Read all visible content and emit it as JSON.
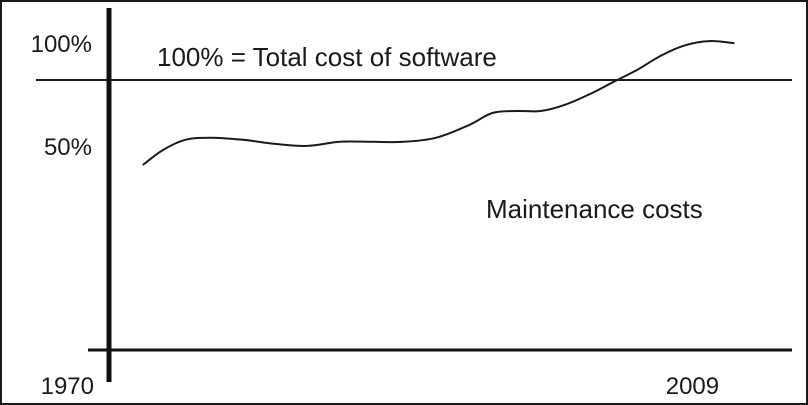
{
  "chart_data": {
    "type": "line",
    "title": "",
    "xlabel": "",
    "ylabel": "",
    "reference_line": {
      "y": 100,
      "label": "100% = Total cost of software"
    },
    "y_ticks": [
      {
        "value": 100,
        "label": "100%"
      },
      {
        "value": 50,
        "label": "50%"
      }
    ],
    "x_ticks": [
      {
        "value": 1970,
        "label": "1970"
      },
      {
        "value": 2009,
        "label": "2009"
      }
    ],
    "xlim": [
      1966,
      2016
    ],
    "ylim": [
      -75,
      120
    ],
    "series": [
      {
        "name": "Maintenance costs",
        "color": "#1a1a1a",
        "x": [
          1974.8,
          1976,
          1977.4,
          1979,
          1981,
          1983,
          1985,
          1987,
          1989,
          1991,
          1993,
          1995,
          1996.5,
          1998,
          1999.5,
          2001,
          2002.5,
          2004,
          2005.5,
          2007,
          2008.5,
          2010,
          2011.5
        ],
        "y": [
          41,
          48,
          53,
          54,
          53,
          51,
          50,
          52,
          52,
          52,
          54,
          60,
          66,
          67,
          67,
          70,
          75,
          81,
          87,
          94,
          99,
          101,
          100
        ]
      }
    ]
  }
}
